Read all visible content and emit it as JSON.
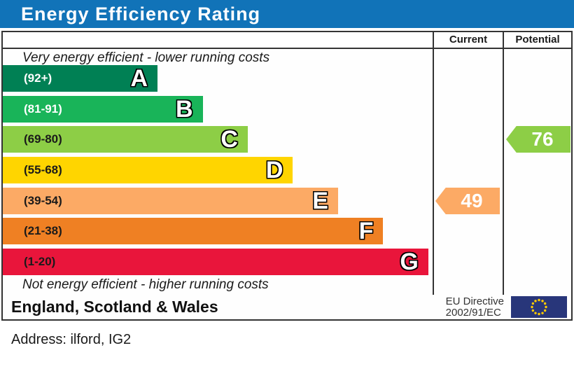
{
  "title": "Energy Efficiency Rating",
  "columns": {
    "current_label": "Current",
    "potential_label": "Potential"
  },
  "notes": {
    "top": "Very energy efficient - lower running costs",
    "bottom": "Not energy efficient - higher running costs"
  },
  "bands": [
    {
      "letter": "A",
      "range": "(92+)",
      "color": "#008054",
      "range_color": "#ffffff",
      "width_pct": 36
    },
    {
      "letter": "B",
      "range": "(81-91)",
      "color": "#19b459",
      "range_color": "#ffffff",
      "width_pct": 46.5
    },
    {
      "letter": "C",
      "range": "(69-80)",
      "color": "#8dce46",
      "range_color": "#1a1a1a",
      "width_pct": 57
    },
    {
      "letter": "D",
      "range": "(55-68)",
      "color": "#ffd500",
      "range_color": "#1a1a1a",
      "width_pct": 67.5
    },
    {
      "letter": "E",
      "range": "(39-54)",
      "color": "#fcaa65",
      "range_color": "#1a1a1a",
      "width_pct": 78
    },
    {
      "letter": "F",
      "range": "(21-38)",
      "color": "#ef8023",
      "range_color": "#1a1a1a",
      "width_pct": 88.5
    },
    {
      "letter": "G",
      "range": "(1-20)",
      "color": "#e9153b",
      "range_color": "#1a1a1a",
      "width_pct": 99
    }
  ],
  "markers": {
    "current": {
      "value": "49",
      "band_index": 4,
      "color": "#fcaa65"
    },
    "potential": {
      "value": "76",
      "band_index": 2,
      "color": "#8dce46"
    }
  },
  "footer": {
    "region": "England, Scotland & Wales",
    "directive_line1": "EU Directive",
    "directive_line2": "2002/91/EC"
  },
  "address_line": "Address: ilford, IG2",
  "accent_colors": {
    "title_bar": "#1173b8",
    "border": "#333333",
    "eu_flag_blue": "#28367a",
    "eu_flag_star": "#ffcc00"
  },
  "chart_data": {
    "type": "bar",
    "title": "Energy Efficiency Rating",
    "categories": [
      "A",
      "B",
      "C",
      "D",
      "E",
      "F",
      "G"
    ],
    "band_ranges": [
      "92+",
      "81-91",
      "69-80",
      "55-68",
      "39-54",
      "21-38",
      "1-20"
    ],
    "band_colors": [
      "#008054",
      "#19b459",
      "#8dce46",
      "#ffd500",
      "#fcaa65",
      "#ef8023",
      "#e9153b"
    ],
    "bar_lengths_pct_of_plot": [
      36,
      46.5,
      57,
      67.5,
      78,
      88.5,
      99
    ],
    "series": [
      {
        "name": "Current",
        "values": [
          49
        ],
        "band": "E"
      },
      {
        "name": "Potential",
        "values": [
          76
        ],
        "band": "C"
      }
    ],
    "value_scale": [
      1,
      100
    ],
    "annotations": [
      "Very energy efficient - lower running costs",
      "Not energy efficient - higher running costs",
      "England, Scotland & Wales",
      "EU Directive 2002/91/EC"
    ],
    "legend_position": "none",
    "grid": false
  }
}
